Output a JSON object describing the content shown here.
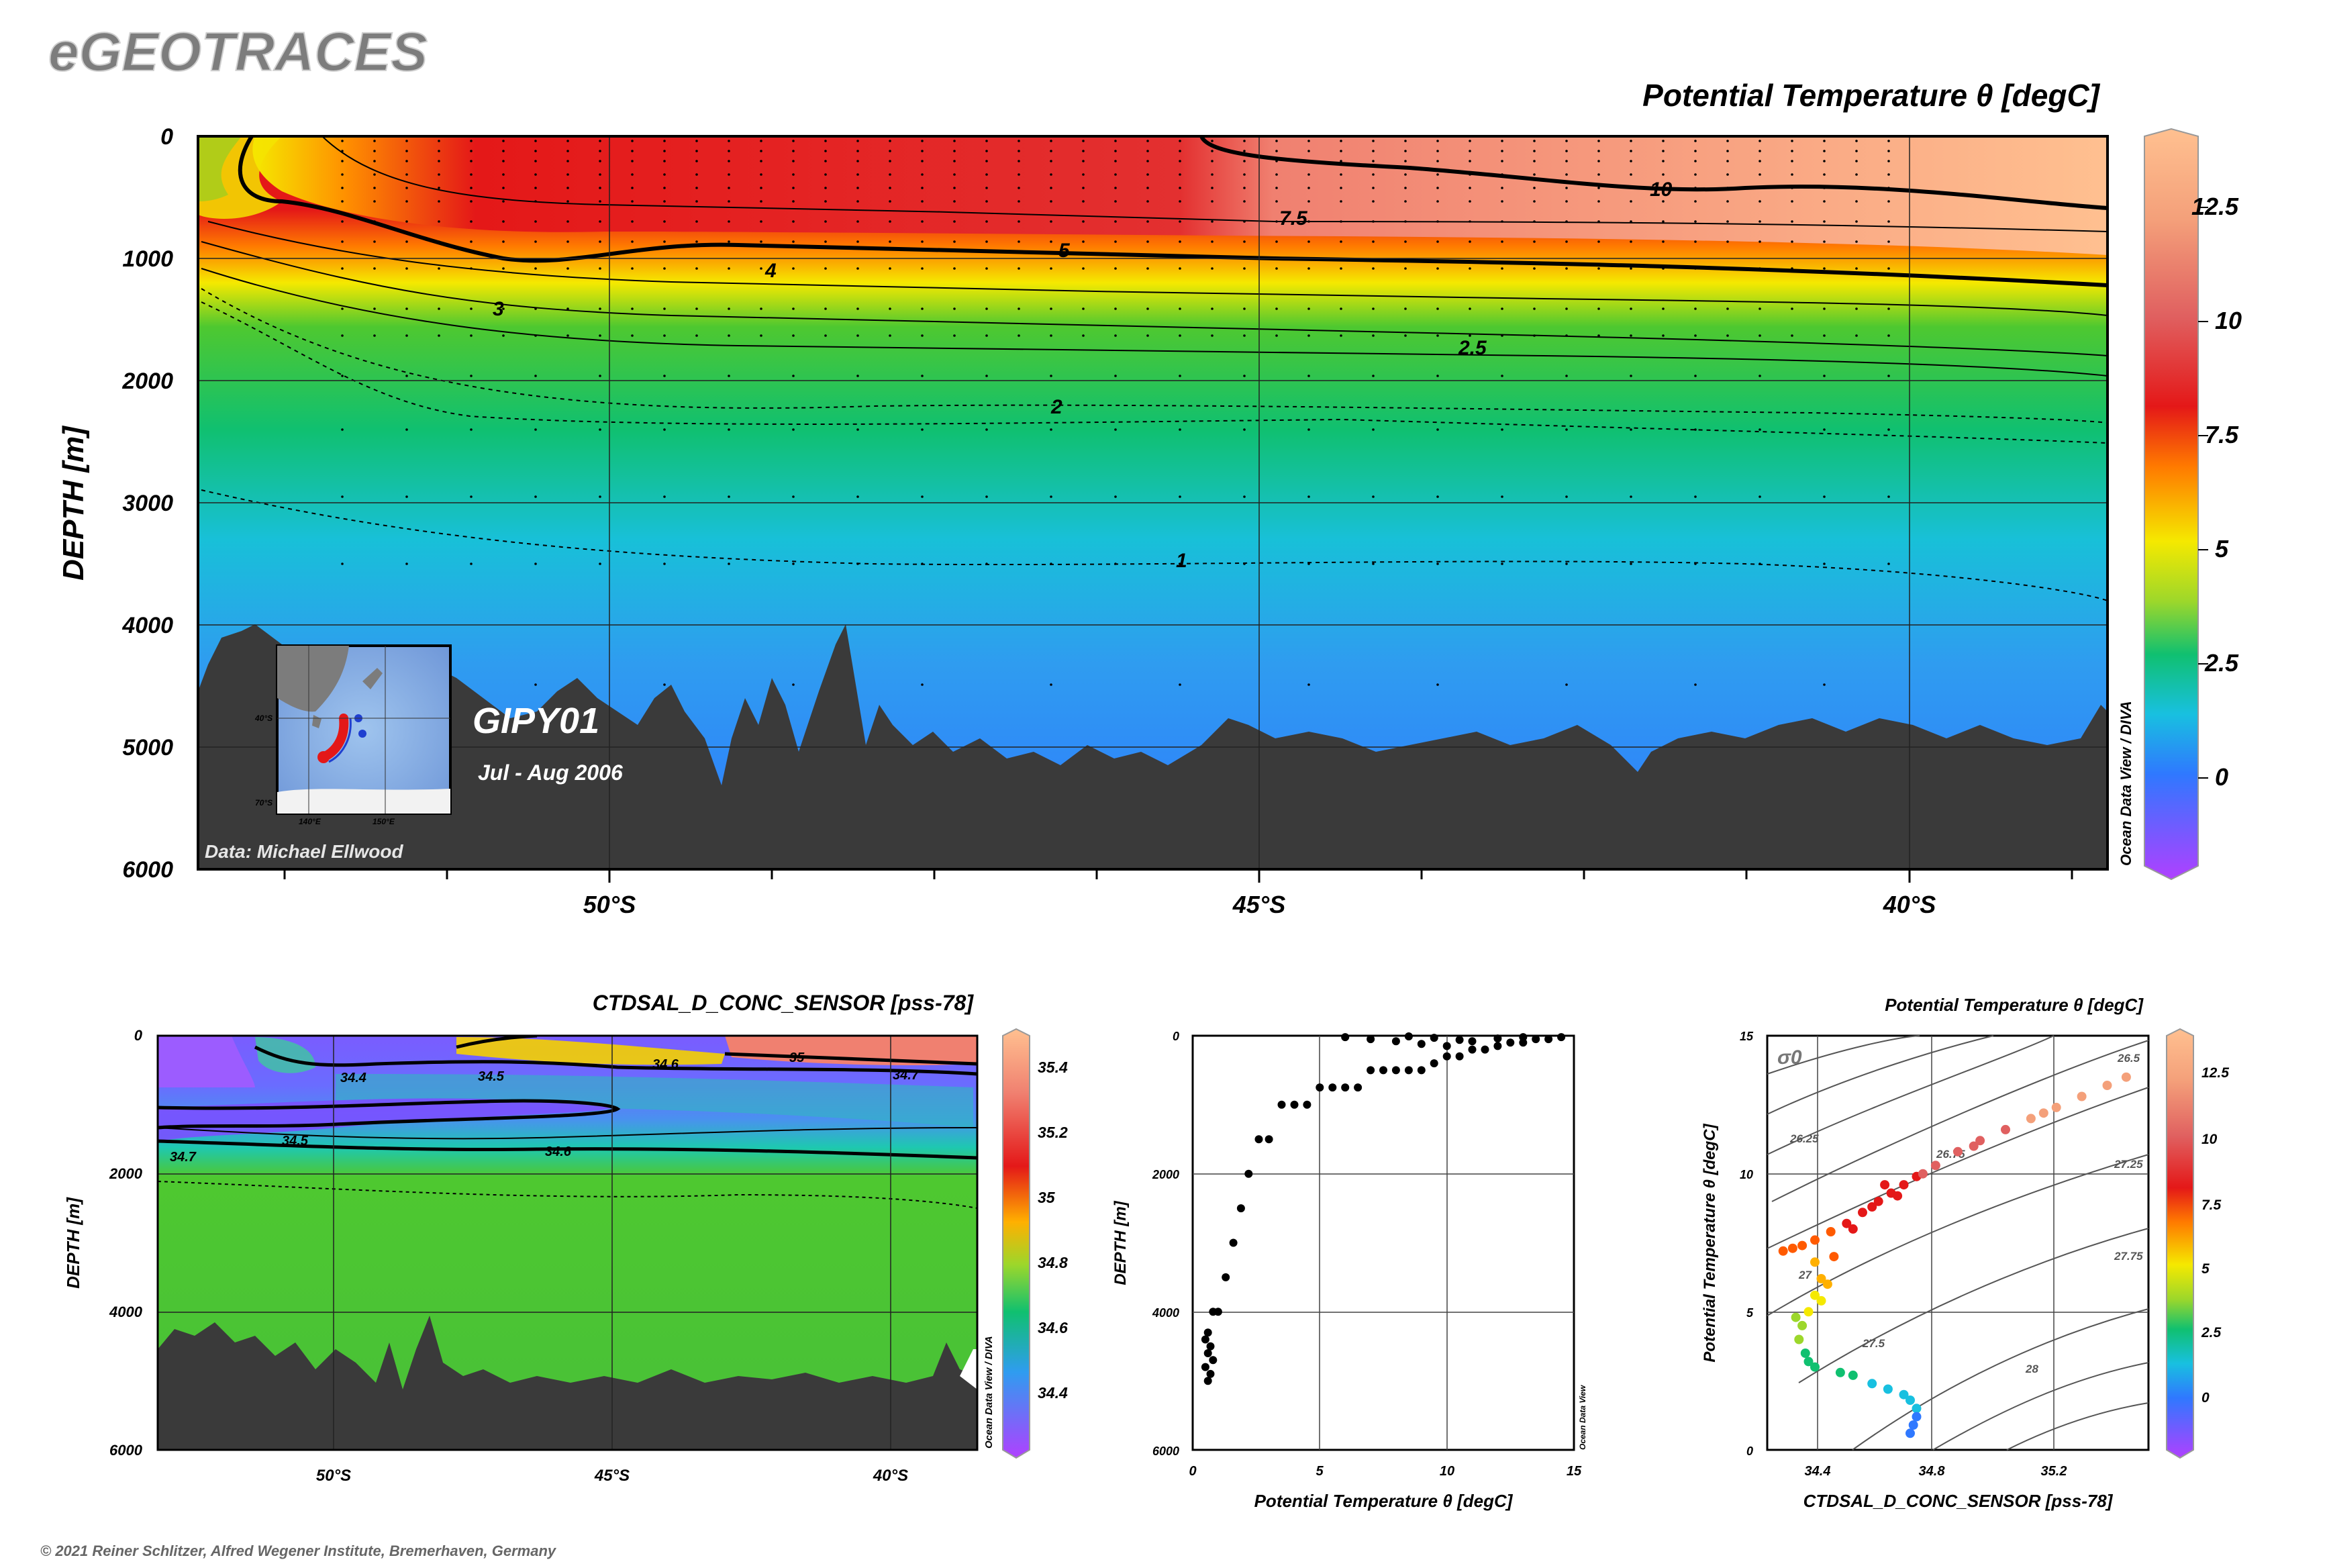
{
  "header": {
    "app_title": "eGEOTRACES",
    "copyright": "© 2021 Reiner Schlitzer, Alfred Wegener Institute, Bremerhaven, Germany"
  },
  "colors": {
    "seafloor": "#3a3a3a",
    "palette": [
      "#b040ff",
      "#7a6cff",
      "#2f78ff",
      "#18c0e0",
      "#10c070",
      "#4ec830",
      "#9cd72b",
      "#f5e900",
      "#ffb000",
      "#ff5a00",
      "#e41818",
      "#e06060",
      "#f4a07a",
      "#ffc090"
    ]
  },
  "chart_data": [
    {
      "id": "main-section",
      "type": "heatmap",
      "title": "Potential Temperature θ [degC]",
      "ylabel": "DEPTH [m]",
      "yticks": [
        "0",
        "1000",
        "2000",
        "3000",
        "4000",
        "5000",
        "6000"
      ],
      "xticks": [
        "50°S",
        "45°S",
        "40°S"
      ],
      "ylim": [
        6000,
        0
      ],
      "colorbar": {
        "ticks": [
          "12.5",
          "10",
          "7.5",
          "5",
          "2.5",
          "0"
        ],
        "range": [
          -2,
          14
        ]
      },
      "contour_labels": [
        "10",
        "7.5",
        "5",
        "4",
        "3",
        "2.5",
        "2",
        "1"
      ],
      "cruise": "GIPY01",
      "period": "Jul - Aug 2006",
      "credit": "Data: Michael Ellwood",
      "software": "Ocean Data View / DIVA",
      "inset_map": {
        "lat_labels": [
          "40°S",
          "70°S"
        ],
        "lon_labels": [
          "140°E",
          "150°E"
        ]
      }
    },
    {
      "id": "salinity-section",
      "type": "heatmap",
      "title": "CTDSAL_D_CONC_SENSOR [pss-78]",
      "ylabel": "DEPTH [m]",
      "yticks": [
        "0",
        "2000",
        "4000",
        "6000"
      ],
      "xticks": [
        "50°S",
        "45°S",
        "40°S"
      ],
      "colorbar": {
        "ticks": [
          "35.4",
          "35.2",
          "35",
          "34.8",
          "34.6",
          "34.4"
        ],
        "range": [
          34.25,
          35.55
        ]
      },
      "contour_labels": [
        "34.4",
        "34.5",
        "34.6",
        "35",
        "34.7",
        "34.5",
        "34.6",
        "34.7"
      ],
      "software": "Ocean Data View / DIVA"
    },
    {
      "id": "profile-scatter",
      "type": "scatter",
      "xlabel": "Potential Temperature θ [degC]",
      "ylabel": "DEPTH [m]",
      "xticks": [
        "0",
        "5",
        "10",
        "15"
      ],
      "yticks": [
        "0",
        "2000",
        "4000",
        "6000"
      ],
      "xlim": [
        0,
        15
      ],
      "ylim": [
        6000,
        0
      ],
      "software": "Ocean Data View",
      "points": [
        [
          0.6,
          5000
        ],
        [
          0.7,
          4900
        ],
        [
          0.5,
          4800
        ],
        [
          0.8,
          4700
        ],
        [
          0.6,
          4600
        ],
        [
          0.7,
          4500
        ],
        [
          0.5,
          4400
        ],
        [
          0.6,
          4300
        ],
        [
          0.8,
          4000
        ],
        [
          1.0,
          4000
        ],
        [
          1.3,
          3500
        ],
        [
          1.6,
          3000
        ],
        [
          1.9,
          2500
        ],
        [
          2.2,
          2000
        ],
        [
          2.6,
          1500
        ],
        [
          3.0,
          1500
        ],
        [
          3.5,
          1000
        ],
        [
          4.0,
          1000
        ],
        [
          4.5,
          1000
        ],
        [
          5.0,
          750
        ],
        [
          5.5,
          750
        ],
        [
          6.0,
          750
        ],
        [
          6.5,
          750
        ],
        [
          7.0,
          500
        ],
        [
          7.5,
          500
        ],
        [
          8.0,
          500
        ],
        [
          8.5,
          500
        ],
        [
          9.0,
          500
        ],
        [
          9.5,
          400
        ],
        [
          10.0,
          300
        ],
        [
          10.5,
          300
        ],
        [
          11.0,
          200
        ],
        [
          11.5,
          200
        ],
        [
          12.0,
          150
        ],
        [
          12.5,
          100
        ],
        [
          13.0,
          100
        ],
        [
          13.5,
          50
        ],
        [
          14.0,
          50
        ],
        [
          14.5,
          20
        ],
        [
          6.0,
          20
        ],
        [
          7.0,
          50
        ],
        [
          8.0,
          80
        ],
        [
          9.0,
          120
        ],
        [
          10.0,
          150
        ],
        [
          11.0,
          80
        ],
        [
          12.0,
          40
        ],
        [
          13.0,
          20
        ],
        [
          8.5,
          10
        ],
        [
          9.5,
          30
        ],
        [
          10.5,
          60
        ]
      ]
    },
    {
      "id": "ts-diagram",
      "type": "scatter",
      "title": "Potential Temperature θ [degC]",
      "xlabel": "CTDSAL_D_CONC_SENSOR [pss-78]",
      "ylabel": "Potential Temperature θ [degC]",
      "xticks": [
        "34.4",
        "34.8",
        "35.2"
      ],
      "yticks": [
        "0",
        "5",
        "10",
        "15"
      ],
      "xlim": [
        34.25,
        35.45
      ],
      "ylim": [
        0,
        15
      ],
      "sigma_label": "σ0",
      "isopycnal_labels": [
        "26.25",
        "26.75",
        "27.25",
        "27.5",
        "27.75",
        "28",
        "26.5",
        "27"
      ],
      "colorbar": {
        "ticks": [
          "12.5",
          "10",
          "7.5",
          "5",
          "2.5",
          "0"
        ],
        "range": [
          -2,
          14
        ]
      },
      "software": "Ocean Data View",
      "points": [
        [
          34.3,
          7.2
        ],
        [
          34.33,
          7.3
        ],
        [
          34.36,
          7.4
        ],
        [
          34.4,
          7.6
        ],
        [
          34.45,
          7.9
        ],
        [
          34.5,
          8.2
        ],
        [
          34.55,
          8.6
        ],
        [
          34.6,
          9.0
        ],
        [
          34.64,
          9.3
        ],
        [
          34.68,
          9.6
        ],
        [
          34.72,
          9.9
        ],
        [
          34.78,
          10.3
        ],
        [
          34.85,
          10.8
        ],
        [
          34.92,
          11.2
        ],
        [
          35.0,
          11.6
        ],
        [
          35.08,
          12.0
        ],
        [
          35.16,
          12.4
        ],
        [
          35.24,
          12.8
        ],
        [
          35.32,
          13.2
        ],
        [
          35.38,
          13.5
        ],
        [
          34.4,
          6.8
        ],
        [
          34.42,
          6.2
        ],
        [
          34.4,
          5.6
        ],
        [
          34.38,
          5.0
        ],
        [
          34.36,
          4.5
        ],
        [
          34.35,
          4.0
        ],
        [
          34.37,
          3.5
        ],
        [
          34.4,
          3.0
        ],
        [
          34.48,
          2.8
        ],
        [
          34.52,
          2.7
        ],
        [
          34.58,
          2.4
        ],
        [
          34.63,
          2.2
        ],
        [
          34.68,
          2.0
        ],
        [
          34.7,
          1.8
        ],
        [
          34.72,
          1.5
        ],
        [
          34.72,
          1.2
        ],
        [
          34.71,
          0.9
        ],
        [
          34.7,
          0.6
        ],
        [
          34.38,
          3.2
        ],
        [
          34.42,
          5.4
        ],
        [
          34.46,
          7.0
        ],
        [
          34.52,
          8.0
        ],
        [
          34.58,
          8.8
        ],
        [
          34.66,
          9.2
        ],
        [
          34.74,
          10.0
        ],
        [
          34.34,
          4.8
        ],
        [
          34.44,
          6.0
        ],
        [
          34.62,
          9.6
        ],
        [
          34.9,
          11.0
        ],
        [
          35.12,
          12.2
        ]
      ]
    }
  ]
}
